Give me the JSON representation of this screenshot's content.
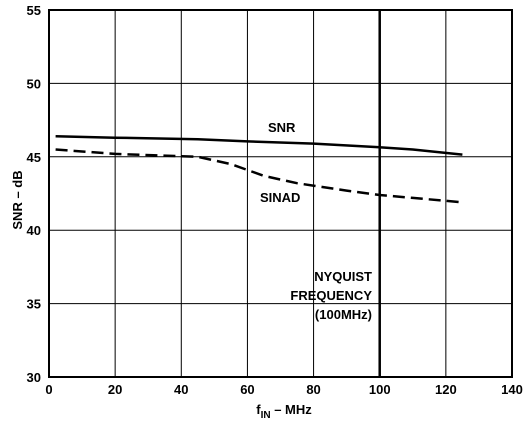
{
  "chart_data": {
    "type": "line",
    "xlabel": {
      "main": "f",
      "sub": "IN",
      "rest": " – MHz"
    },
    "ylabel": "SNR – dB",
    "xlim": [
      0,
      140
    ],
    "ylim": [
      30,
      55
    ],
    "xticks": [
      0,
      20,
      40,
      60,
      80,
      100,
      120,
      140
    ],
    "yticks": [
      30,
      35,
      40,
      45,
      50,
      55
    ],
    "grid": true,
    "series": [
      {
        "name": "SNR",
        "style": "solid",
        "x": [
          2,
          20,
          45,
          60,
          80,
          100,
          110,
          125
        ],
        "y": [
          46.4,
          46.3,
          46.2,
          46.05,
          45.9,
          45.65,
          45.5,
          45.15
        ]
      },
      {
        "name": "SINAD",
        "style": "dashed",
        "x": [
          2,
          20,
          45,
          55,
          65,
          75,
          90,
          100,
          110,
          125
        ],
        "y": [
          45.5,
          45.2,
          45.0,
          44.5,
          43.7,
          43.2,
          42.7,
          42.4,
          42.2,
          41.9
        ]
      }
    ],
    "annotations": {
      "nyquist_x": 100,
      "nyquist_label": [
        "NYQUIST",
        "FREQUENCY",
        "(100MHz)"
      ],
      "snr_label": "SNR",
      "sinad_label": "SINAD"
    }
  }
}
